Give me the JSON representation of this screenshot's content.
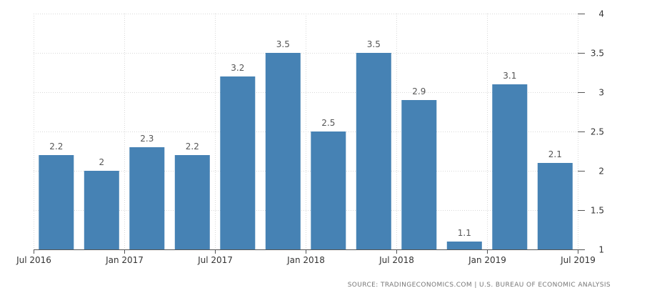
{
  "chart_data": {
    "type": "bar",
    "title": "",
    "xlabel": "",
    "ylabel": "",
    "categories": [
      "Q3 2016",
      "Q4 2016",
      "Q1 2017",
      "Q2 2017",
      "Q3 2017",
      "Q4 2017",
      "Q1 2018",
      "Q2 2018",
      "Q3 2018",
      "Q4 2018",
      "Q1 2019",
      "Q2 2019"
    ],
    "values": [
      2.2,
      2.0,
      2.3,
      2.2,
      3.2,
      3.5,
      2.5,
      3.5,
      2.9,
      1.1,
      3.1,
      2.1
    ],
    "data_labels": [
      "2.2",
      "2",
      "2.3",
      "2.2",
      "3.2",
      "3.5",
      "2.5",
      "3.5",
      "2.9",
      "1.1",
      "3.1",
      "2.1"
    ],
    "ylim": [
      1,
      4
    ],
    "y_ticks": [
      1,
      1.5,
      2,
      2.5,
      3,
      3.5,
      4
    ],
    "y_axis_position": "right",
    "x_tick_labels": [
      "Jul 2016",
      "Jan 2017",
      "Jul 2017",
      "Jan 2018",
      "Jul 2018",
      "Jan 2019",
      "Jul 2019"
    ],
    "grid": true,
    "legend": "none",
    "bar_color": "#4682b4"
  },
  "footer": {
    "source": "SOURCE: TRADINGECONOMICS.COM | U.S. BUREAU OF ECONOMIC ANALYSIS"
  }
}
